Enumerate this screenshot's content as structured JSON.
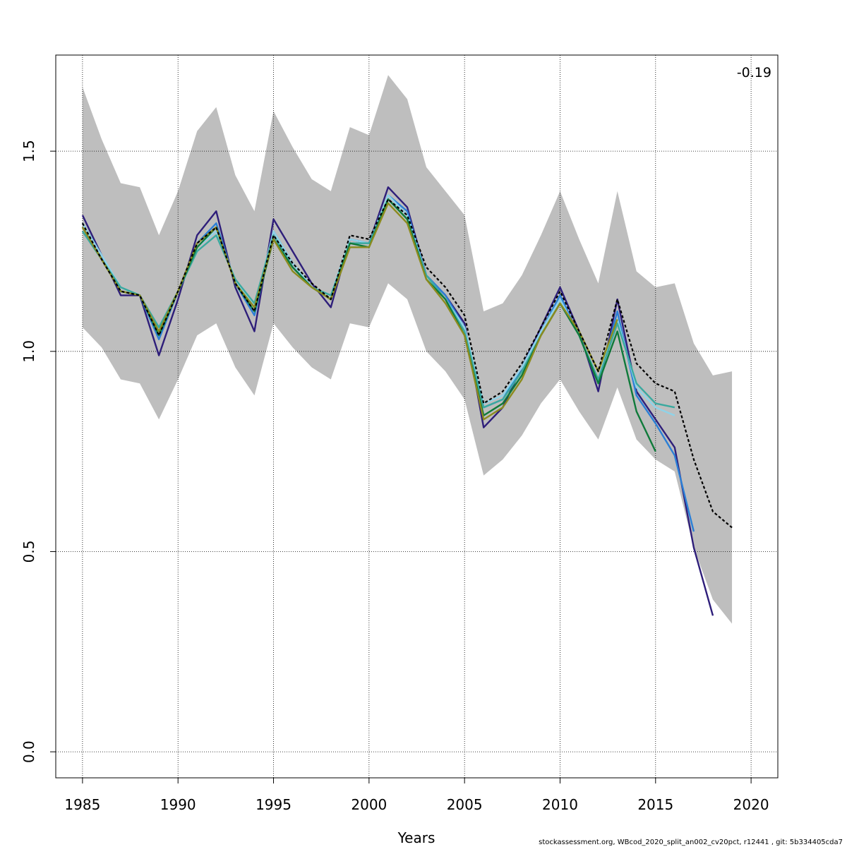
{
  "chart_data": {
    "type": "line",
    "title": "",
    "xlabel": "Years",
    "ylabel": "",
    "xlim": [
      1983.6,
      2021.4
    ],
    "ylim": [
      -0.065,
      1.74
    ],
    "x_ticks": [
      "1985",
      "1990",
      "1995",
      "2000",
      "2005",
      "2010",
      "2015",
      "2020"
    ],
    "y_ticks": [
      "0.0",
      "0.5",
      "1.0",
      "1.5"
    ],
    "grid": true,
    "legend": "none",
    "annotation": "-0.19",
    "band": {
      "color": "#bebebe",
      "x": [
        1985,
        1986,
        1987,
        1988,
        1989,
        1990,
        1991,
        1992,
        1993,
        1994,
        1995,
        1996,
        1997,
        1998,
        1999,
        2000,
        2001,
        2002,
        2003,
        2004,
        2005,
        2006,
        2007,
        2008,
        2009,
        2010,
        2011,
        2012,
        2013,
        2014,
        2015,
        2016,
        2017,
        2018,
        2019
      ],
      "upper": [
        1.66,
        1.53,
        1.42,
        1.41,
        1.29,
        1.4,
        1.55,
        1.61,
        1.44,
        1.35,
        1.6,
        1.51,
        1.43,
        1.4,
        1.56,
        1.54,
        1.69,
        1.63,
        1.46,
        1.4,
        1.34,
        1.1,
        1.12,
        1.19,
        1.29,
        1.4,
        1.28,
        1.17,
        1.4,
        1.2,
        1.16,
        1.17,
        1.02,
        0.94,
        0.95
      ],
      "lower": [
        1.06,
        1.01,
        0.93,
        0.92,
        0.83,
        0.93,
        1.04,
        1.07,
        0.96,
        0.89,
        1.07,
        1.01,
        0.96,
        0.93,
        1.07,
        1.06,
        1.17,
        1.13,
        1.0,
        0.95,
        0.88,
        0.69,
        0.73,
        0.79,
        0.87,
        0.93,
        0.85,
        0.78,
        0.91,
        0.78,
        0.73,
        0.7,
        0.51,
        0.38,
        0.32
      ]
    },
    "series": [
      {
        "color": "#000000",
        "dashed": true,
        "x": [
          1985,
          1986,
          1987,
          1988,
          1989,
          1990,
          1991,
          1992,
          1993,
          1994,
          1995,
          1996,
          1997,
          1998,
          1999,
          2000,
          2001,
          2002,
          2003,
          2004,
          2005,
          2006,
          2007,
          2008,
          2009,
          2010,
          2011,
          2012,
          2013,
          2014,
          2015,
          2016,
          2017,
          2018,
          2019
        ],
        "values": [
          1.32,
          1.23,
          1.15,
          1.14,
          1.04,
          1.15,
          1.27,
          1.31,
          1.17,
          1.1,
          1.29,
          1.22,
          1.17,
          1.13,
          1.29,
          1.28,
          1.38,
          1.34,
          1.21,
          1.16,
          1.09,
          0.87,
          0.9,
          0.97,
          1.06,
          1.15,
          1.05,
          0.95,
          1.13,
          0.97,
          0.92,
          0.9,
          0.73,
          0.6,
          0.56
        ]
      },
      {
        "color": "#2e1e7a",
        "dashed": false,
        "x": [
          1985,
          1986,
          1987,
          1988,
          1989,
          1990,
          1991,
          1992,
          1993,
          1994,
          1995,
          1996,
          1997,
          1998,
          1999,
          2000,
          2001,
          2002,
          2003,
          2004,
          2005,
          2006,
          2007,
          2008,
          2009,
          2010,
          2011,
          2012,
          2013,
          2014,
          2015,
          2016,
          2017,
          2018
        ],
        "values": [
          1.34,
          1.24,
          1.14,
          1.14,
          0.99,
          1.13,
          1.29,
          1.35,
          1.16,
          1.05,
          1.33,
          1.25,
          1.17,
          1.11,
          1.28,
          1.27,
          1.41,
          1.36,
          1.19,
          1.14,
          1.07,
          0.81,
          0.86,
          0.96,
          1.06,
          1.16,
          1.05,
          0.9,
          1.13,
          0.9,
          0.83,
          0.76,
          0.51,
          0.34
        ]
      },
      {
        "color": "#2b7fd6",
        "dashed": false,
        "x": [
          1985,
          1986,
          1987,
          1988,
          1989,
          1990,
          1991,
          1992,
          1993,
          1994,
          1995,
          1996,
          1997,
          1998,
          1999,
          2000,
          2001,
          2002,
          2003,
          2004,
          2005,
          2006,
          2007,
          2008,
          2009,
          2010,
          2011,
          2012,
          2013,
          2014,
          2015,
          2016,
          2017
        ],
        "values": [
          1.32,
          1.24,
          1.15,
          1.14,
          1.03,
          1.15,
          1.27,
          1.32,
          1.17,
          1.09,
          1.3,
          1.22,
          1.16,
          1.13,
          1.28,
          1.27,
          1.39,
          1.35,
          1.19,
          1.14,
          1.06,
          0.86,
          0.88,
          0.96,
          1.05,
          1.14,
          1.04,
          0.92,
          1.1,
          0.89,
          0.82,
          0.74,
          0.55
        ]
      },
      {
        "color": "#8fd3e8",
        "dashed": false,
        "x": [
          1985,
          1986,
          1987,
          1988,
          1989,
          1990,
          1991,
          1992,
          1993,
          1994,
          1995,
          1996,
          1997,
          1998,
          1999,
          2000,
          2001,
          2002,
          2003,
          2004,
          2005,
          2006,
          2007,
          2008,
          2009,
          2010,
          2011,
          2012,
          2013,
          2014,
          2015,
          2016
        ],
        "values": [
          1.32,
          1.24,
          1.16,
          1.14,
          1.05,
          1.15,
          1.26,
          1.3,
          1.18,
          1.11,
          1.3,
          1.22,
          1.16,
          1.14,
          1.28,
          1.27,
          1.39,
          1.34,
          1.19,
          1.13,
          1.06,
          0.87,
          0.89,
          0.96,
          1.05,
          1.13,
          1.04,
          0.93,
          1.08,
          0.91,
          0.86,
          0.84
        ]
      },
      {
        "color": "#3aa99f",
        "dashed": false,
        "x": [
          1985,
          1986,
          1987,
          1988,
          1989,
          1990,
          1991,
          1992,
          1993,
          1994,
          1995,
          1996,
          1997,
          1998,
          1999,
          2000,
          2001,
          2002,
          2003,
          2004,
          2005,
          2006,
          2007,
          2008,
          2009,
          2010,
          2011,
          2012,
          2013,
          2014,
          2015,
          2016
        ],
        "values": [
          1.3,
          1.23,
          1.16,
          1.14,
          1.06,
          1.15,
          1.25,
          1.29,
          1.18,
          1.12,
          1.29,
          1.21,
          1.16,
          1.14,
          1.27,
          1.27,
          1.38,
          1.33,
          1.19,
          1.13,
          1.05,
          0.86,
          0.88,
          0.95,
          1.04,
          1.12,
          1.04,
          0.93,
          1.07,
          0.92,
          0.87,
          0.86
        ]
      },
      {
        "color": "#0f7a3a",
        "dashed": false,
        "x": [
          1985,
          1986,
          1987,
          1988,
          1989,
          1990,
          1991,
          1992,
          1993,
          1994,
          1995,
          1996,
          1997,
          1998,
          1999,
          2000,
          2001,
          2002,
          2003,
          2004,
          2005,
          2006,
          2007,
          2008,
          2009,
          2010,
          2011,
          2012,
          2013,
          2014,
          2015
        ],
        "values": [
          1.31,
          1.23,
          1.15,
          1.14,
          1.04,
          1.15,
          1.26,
          1.31,
          1.17,
          1.1,
          1.28,
          1.21,
          1.16,
          1.13,
          1.27,
          1.26,
          1.38,
          1.33,
          1.18,
          1.13,
          1.04,
          0.84,
          0.87,
          0.94,
          1.04,
          1.12,
          1.04,
          0.92,
          1.05,
          0.85,
          0.75
        ]
      },
      {
        "color": "#8b8b1e",
        "dashed": false,
        "x": [
          1985,
          1986,
          1987,
          1988,
          1989,
          1990,
          1991,
          1992,
          1993,
          1994,
          1995,
          1996,
          1997,
          1998,
          1999,
          2000,
          2001,
          2002,
          2003,
          2004,
          2005,
          2006,
          2007,
          2008,
          2009,
          2010,
          2011,
          2012,
          2013
        ],
        "values": [
          1.31,
          1.23,
          1.15,
          1.14,
          1.05,
          1.15,
          1.27,
          1.31,
          1.17,
          1.11,
          1.28,
          1.2,
          1.16,
          1.13,
          1.26,
          1.26,
          1.37,
          1.32,
          1.18,
          1.12,
          1.04,
          0.83,
          0.86,
          0.93,
          1.04,
          1.12,
          1.05,
          0.95,
          1.08
        ]
      }
    ]
  },
  "footer": "stockassessment.org, WBcod_2020_split_an002_cv20pct, r12441 , git: 5b334405cda7"
}
